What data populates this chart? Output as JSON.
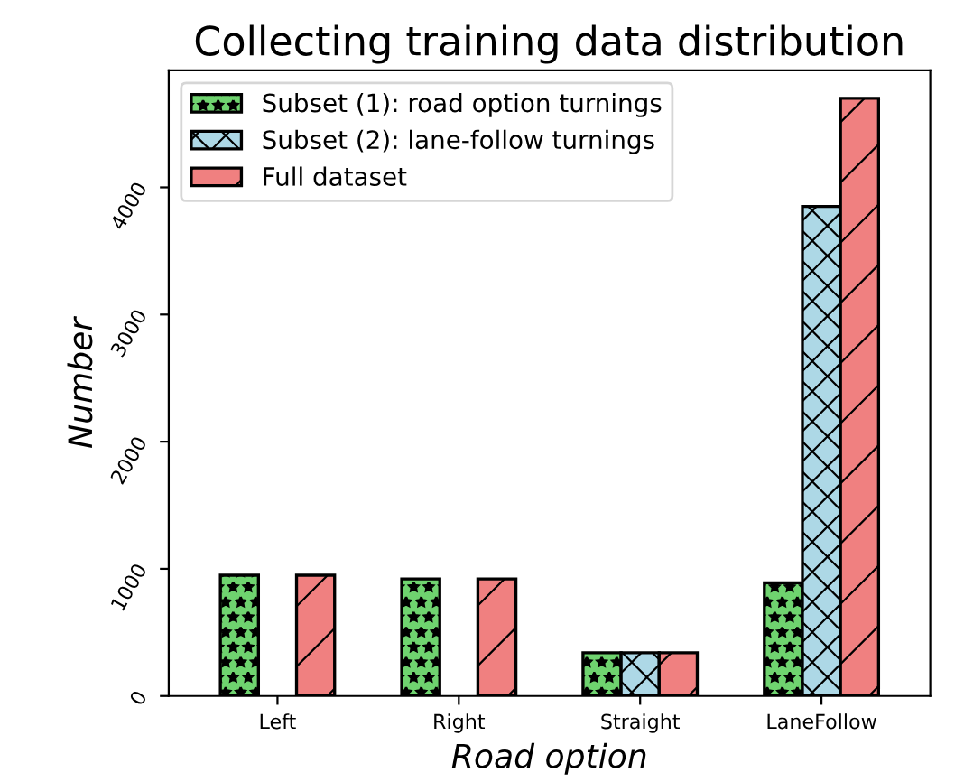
{
  "chart_data": {
    "type": "bar",
    "title": "Collecting training data distribution",
    "xlabel": "Road option",
    "ylabel": "Number",
    "categories": [
      "Left",
      "Right",
      "Straight",
      "LaneFollow"
    ],
    "series": [
      {
        "name": "Subset (1): road option turnings",
        "color": "#6fd36f",
        "values": [
          950,
          920,
          340,
          890
        ]
      },
      {
        "name": "Subset (2): lane-follow turnings",
        "color": "#add8e6",
        "values": [
          null,
          null,
          340,
          3850
        ]
      },
      {
        "name": "Full dataset",
        "color": "#f08080",
        "values": [
          950,
          920,
          340,
          4700
        ]
      }
    ],
    "ylim": [
      0,
      4920
    ],
    "yticks": [
      0,
      1000,
      2000,
      3000,
      4000
    ],
    "legend": "top left",
    "grid": false
  }
}
